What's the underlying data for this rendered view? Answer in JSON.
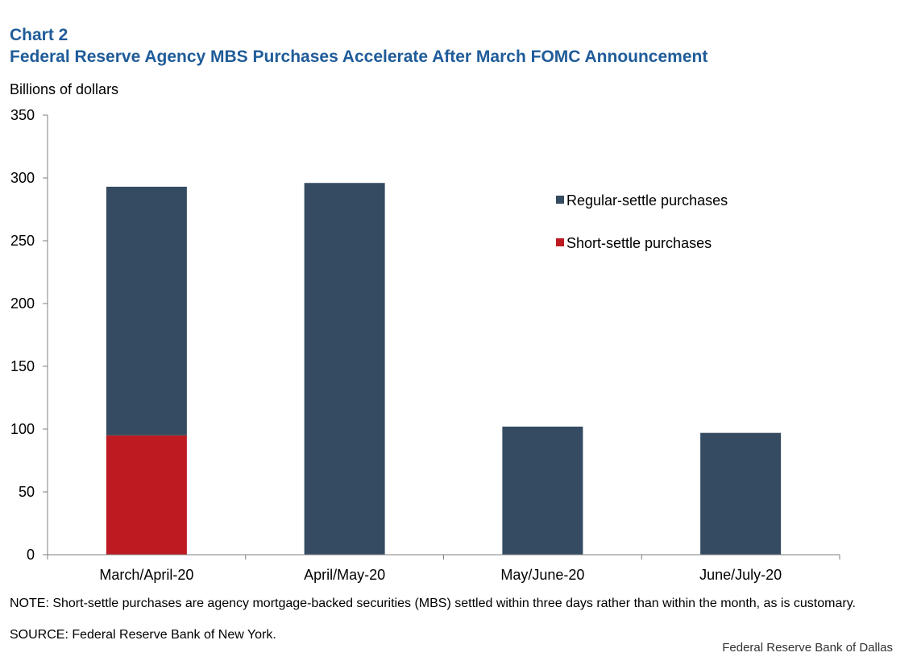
{
  "header": {
    "chart_number": "Chart 2",
    "title": "Federal Reserve Agency MBS Purchases Accelerate After March FOMC Announcement"
  },
  "chart_data": {
    "type": "bar",
    "stacked": true,
    "title": "Federal Reserve Agency MBS Purchases Accelerate After March FOMC Announcement",
    "ylabel": "Billions  of dollars",
    "xlabel": "",
    "ylim": [
      0,
      350
    ],
    "yticks": [
      0,
      50,
      100,
      150,
      200,
      250,
      300,
      350
    ],
    "categories": [
      "March/April-20",
      "April/May-20",
      "May/June-20",
      "June/July-20"
    ],
    "series": [
      {
        "name": "Short-settle purchases",
        "color": "#be1a21",
        "values": [
          95,
          0,
          0,
          0
        ]
      },
      {
        "name": "Regular-settle purchases",
        "color": "#344b61",
        "values": [
          198,
          296,
          102,
          97
        ]
      }
    ],
    "legend_order": [
      "Regular-settle purchases",
      "Short-settle purchases"
    ],
    "legend_placement": "top-right",
    "grid": false
  },
  "footer": {
    "note": "NOTE: Short-settle purchases are agency mortgage-backed  securities (MBS) settled within three days rather than within the month, as is customary.",
    "source": "SOURCE: Federal Reserve Bank of New York.",
    "credit": "Federal Reserve  Bank of Dallas"
  }
}
